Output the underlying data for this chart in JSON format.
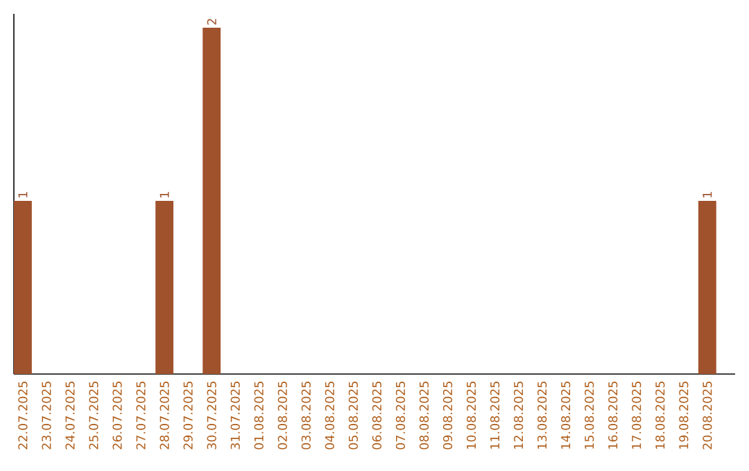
{
  "chart_data": {
    "type": "bar",
    "color": "#a0522d",
    "categories": [
      "22.07.2025",
      "23.07.2025",
      "24.07.2025",
      "25.07.2025",
      "26.07.2025",
      "27.07.2025",
      "28.07.2025",
      "29.07.2025",
      "30.07.2025",
      "31.07.2025",
      "01.08.2025",
      "02.08.2025",
      "03.08.2025",
      "04.08.2025",
      "05.08.2025",
      "06.08.2025",
      "07.08.2025",
      "08.08.2025",
      "09.08.2025",
      "10.08.2025",
      "11.08.2025",
      "12.08.2025",
      "13.08.2025",
      "14.08.2025",
      "15.08.2025",
      "16.08.2025",
      "17.08.2025",
      "18.08.2025",
      "19.08.2025",
      "20.08.2025"
    ],
    "values": [
      1,
      0,
      0,
      0,
      0,
      0,
      1,
      0,
      2,
      0,
      0,
      0,
      0,
      0,
      0,
      0,
      0,
      0,
      0,
      0,
      0,
      0,
      0,
      0,
      0,
      0,
      0,
      0,
      0,
      1
    ],
    "value_labels": [
      "1",
      null,
      null,
      null,
      null,
      null,
      "1",
      null,
      "2",
      null,
      null,
      null,
      null,
      null,
      null,
      null,
      null,
      null,
      null,
      null,
      null,
      null,
      null,
      null,
      null,
      null,
      null,
      null,
      null,
      "1"
    ]
  }
}
